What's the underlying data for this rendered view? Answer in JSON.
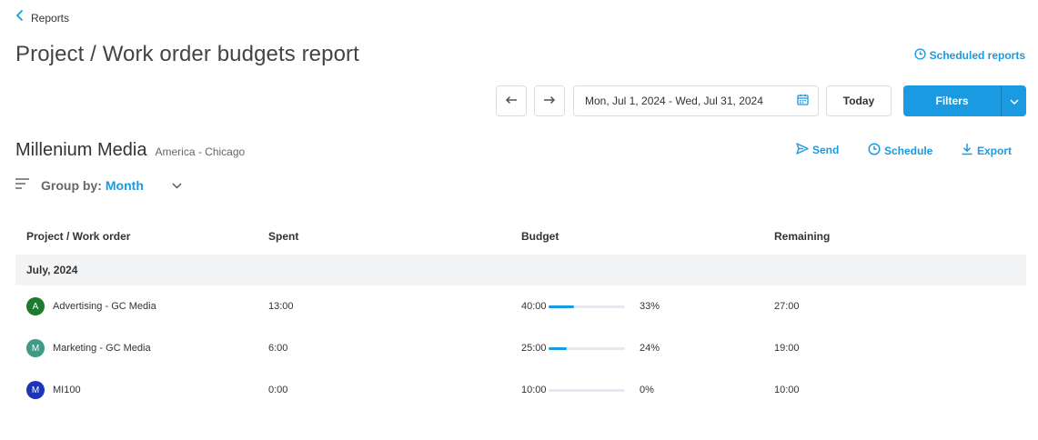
{
  "nav": {
    "back_label": "Reports"
  },
  "page": {
    "title": "Project / Work order budgets report",
    "scheduled_reports_label": "Scheduled reports"
  },
  "toolbar": {
    "date_range": "Mon, Jul 1, 2024 - Wed, Jul 31, 2024",
    "today_label": "Today",
    "filters_label": "Filters"
  },
  "client": {
    "name": "Millenium Media",
    "timezone": "America - Chicago"
  },
  "actions": {
    "send": "Send",
    "schedule": "Schedule",
    "export": "Export"
  },
  "group_by": {
    "label": "Group by:",
    "value": "Month"
  },
  "table": {
    "headers": [
      "Project / Work order",
      "Spent",
      "Budget",
      "Remaining"
    ],
    "group": "July, 2024",
    "rows": [
      {
        "initial": "A",
        "avatar_color": "#1e7a2e",
        "name": "Advertising - GC Media",
        "spent": "13:00",
        "budget": "40:00",
        "percent_label": "33%",
        "percent": 0.33,
        "remaining": "27:00"
      },
      {
        "initial": "M",
        "avatar_color": "#3f9a86",
        "name": "Marketing - GC Media",
        "spent": "6:00",
        "budget": "25:00",
        "percent_label": "24%",
        "percent": 0.24,
        "remaining": "19:00"
      },
      {
        "initial": "M",
        "avatar_color": "#1a35b8",
        "name": "MI100",
        "spent": "0:00",
        "budget": "10:00",
        "percent_label": "0%",
        "percent": 0,
        "remaining": "10:00"
      }
    ]
  },
  "colors": {
    "accent": "#1a9ae0",
    "group_row_bg": "#f2f4f6"
  }
}
